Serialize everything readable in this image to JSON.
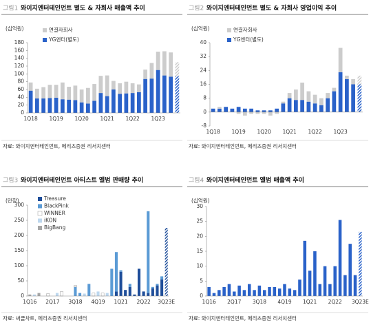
{
  "chart_data": [
    {
      "type": "bar",
      "figure_label": "그림1",
      "title": "와이지엔터테인먼트 별도 & 자회사 매출액 추이",
      "y_label": "(십억원)",
      "categories": [
        "1Q18",
        null,
        null,
        null,
        "1Q19",
        null,
        null,
        null,
        "1Q20",
        null,
        null,
        null,
        "1Q21",
        null,
        null,
        null,
        "1Q22",
        null,
        null,
        null,
        "1Q23",
        null,
        null,
        null
      ],
      "series": [
        {
          "name": "YG엔터(별도)",
          "color": "#2a62c9",
          "values": [
            57,
            37,
            37,
            38,
            39,
            35,
            34,
            33,
            27,
            24,
            31,
            51,
            43,
            60,
            49,
            50,
            51,
            53,
            87,
            88,
            110,
            96,
            93,
            94
          ]
        },
        {
          "name": "연결자회사",
          "color": "#cccccc",
          "values": [
            21,
            25,
            29,
            34,
            33,
            43,
            33,
            37,
            33,
            40,
            43,
            44,
            53,
            22,
            27,
            30,
            25,
            20,
            24,
            40,
            47,
            62,
            62,
            36
          ]
        }
      ],
      "ylim": [
        0,
        180
      ],
      "yticks": [
        0,
        20,
        40,
        60,
        80,
        100,
        120,
        140,
        160,
        180
      ],
      "hatch_last": true,
      "legend_reverse": true,
      "source": "자료: 와이지엔터테인먼트, 메리츠증권 리서치센터"
    },
    {
      "type": "bar",
      "figure_label": "그림2",
      "title": "와이지엔터테인먼트 별도 & 자회사 영업이익 추이",
      "y_label": "(십억원)",
      "categories": [
        "1Q18",
        null,
        null,
        null,
        "1Q19",
        null,
        null,
        null,
        "1Q20",
        null,
        null,
        null,
        "1Q21",
        null,
        null,
        null,
        "1Q22",
        null,
        null,
        null,
        "1Q23",
        null,
        null,
        null
      ],
      "series": [
        {
          "name": "YG엔터(별도)",
          "color": "#2a62c9",
          "values": [
            2,
            2,
            3,
            2,
            3,
            2,
            2,
            1,
            1,
            1,
            2,
            5,
            8,
            7,
            7,
            6,
            5,
            4,
            8,
            12,
            23,
            19,
            16,
            16
          ]
        },
        {
          "name": "연결자회사",
          "color": "#cccccc",
          "values": [
            0,
            1,
            0,
            0,
            -1,
            -2,
            -1,
            -1,
            -1,
            -2,
            -1,
            1,
            3,
            6,
            10,
            6,
            5,
            4,
            3,
            2,
            14,
            2,
            3,
            5
          ]
        }
      ],
      "ylim": [
        -8,
        40
      ],
      "yticks": [
        -8,
        0,
        8,
        16,
        24,
        32,
        40
      ],
      "hatch_last": true,
      "legend_reverse": true,
      "source": "자료: 와이지엔터테인먼트, 메리츠증권 리서치센터"
    },
    {
      "type": "bar",
      "figure_label": "그림3",
      "title": "와이지엔터테인먼트 아티스트 앨범 판매량 추이",
      "y_label": "(만장)",
      "categories": [
        "1Q16",
        null,
        null,
        null,
        null,
        "2Q17",
        null,
        null,
        null,
        null,
        "3Q18",
        null,
        null,
        null,
        null,
        "4Q19",
        null,
        null,
        null,
        null,
        "1Q21",
        null,
        null,
        null,
        null,
        "2Q22",
        null,
        null,
        null,
        null,
        "3Q23E"
      ],
      "series": [
        {
          "name": "Treasure",
          "color": "#1f4e9a",
          "values": [
            0,
            0,
            0,
            0,
            0,
            0,
            0,
            0,
            0,
            0,
            0,
            0,
            0,
            0,
            0,
            0,
            0,
            0,
            0,
            15,
            80,
            20,
            30,
            5,
            90,
            15,
            10,
            25,
            35,
            55,
            225
          ]
        },
        {
          "name": "BlackPink",
          "color": "#5b9bd5",
          "values": [
            0,
            0,
            0,
            0,
            0,
            0,
            0,
            0,
            0,
            0,
            30,
            10,
            0,
            40,
            0,
            0,
            0,
            0,
            90,
            130,
            5,
            0,
            10,
            0,
            0,
            0,
            270,
            5,
            5,
            10,
            0
          ]
        },
        {
          "name": "WINNER",
          "color": "#ffffff",
          "values": [
            0,
            0,
            0,
            0,
            8,
            0,
            0,
            15,
            0,
            0,
            5,
            0,
            0,
            0,
            10,
            0,
            10,
            0,
            0,
            0,
            0,
            0,
            0,
            0,
            0,
            0,
            0,
            0,
            0,
            0,
            0
          ]
        },
        {
          "name": "iKON",
          "color": "#bdd7ee",
          "values": [
            0,
            5,
            0,
            0,
            0,
            0,
            10,
            0,
            0,
            0,
            0,
            0,
            8,
            0,
            0,
            15,
            0,
            10,
            0,
            0,
            0,
            0,
            0,
            0,
            0,
            0,
            0,
            0,
            0,
            0,
            0
          ]
        },
        {
          "name": "BigBang",
          "color": "#a6a6a6",
          "values": [
            5,
            0,
            10,
            0,
            0,
            0,
            0,
            0,
            0,
            0,
            0,
            0,
            0,
            0,
            0,
            0,
            0,
            0,
            0,
            0,
            0,
            0,
            0,
            0,
            0,
            0,
            0,
            0,
            0,
            0,
            0
          ]
        }
      ],
      "ylim": [
        0,
        300
      ],
      "yticks": [
        0,
        50,
        100,
        150,
        200,
        250,
        300
      ],
      "hatch_last": true,
      "legend_reverse": false,
      "source": "자료: 써클차트, 메리츠증권 리서치센터"
    },
    {
      "type": "bar",
      "figure_label": "그림4",
      "title": "와이지엔터테인먼트 앨범 매출액 추이",
      "y_label": "(십억원)",
      "categories": [
        "1Q16",
        null,
        null,
        null,
        null,
        "2Q17",
        null,
        null,
        null,
        null,
        "3Q18",
        null,
        null,
        null,
        null,
        "4Q19",
        null,
        null,
        null,
        null,
        "1Q21",
        null,
        null,
        null,
        null,
        "2Q22",
        null,
        null,
        null,
        null,
        "3Q23E"
      ],
      "values": [
        3,
        1,
        2,
        3,
        4,
        1.5,
        3.5,
        2,
        4,
        2,
        3.5,
        2,
        3,
        3,
        2.5,
        4,
        2.5,
        2,
        5.5,
        18.5,
        8.5,
        15,
        4,
        10,
        4,
        10,
        25.5,
        7,
        17.5,
        7,
        21.5
      ],
      "color": "#2a62c9",
      "ylim": [
        0,
        30
      ],
      "yticks": [
        0,
        5,
        10,
        15,
        20,
        25,
        30
      ],
      "hatch_last": true,
      "source": "자료: 와이지엔터테인먼트, 메리츠증권 리서치센터"
    }
  ]
}
